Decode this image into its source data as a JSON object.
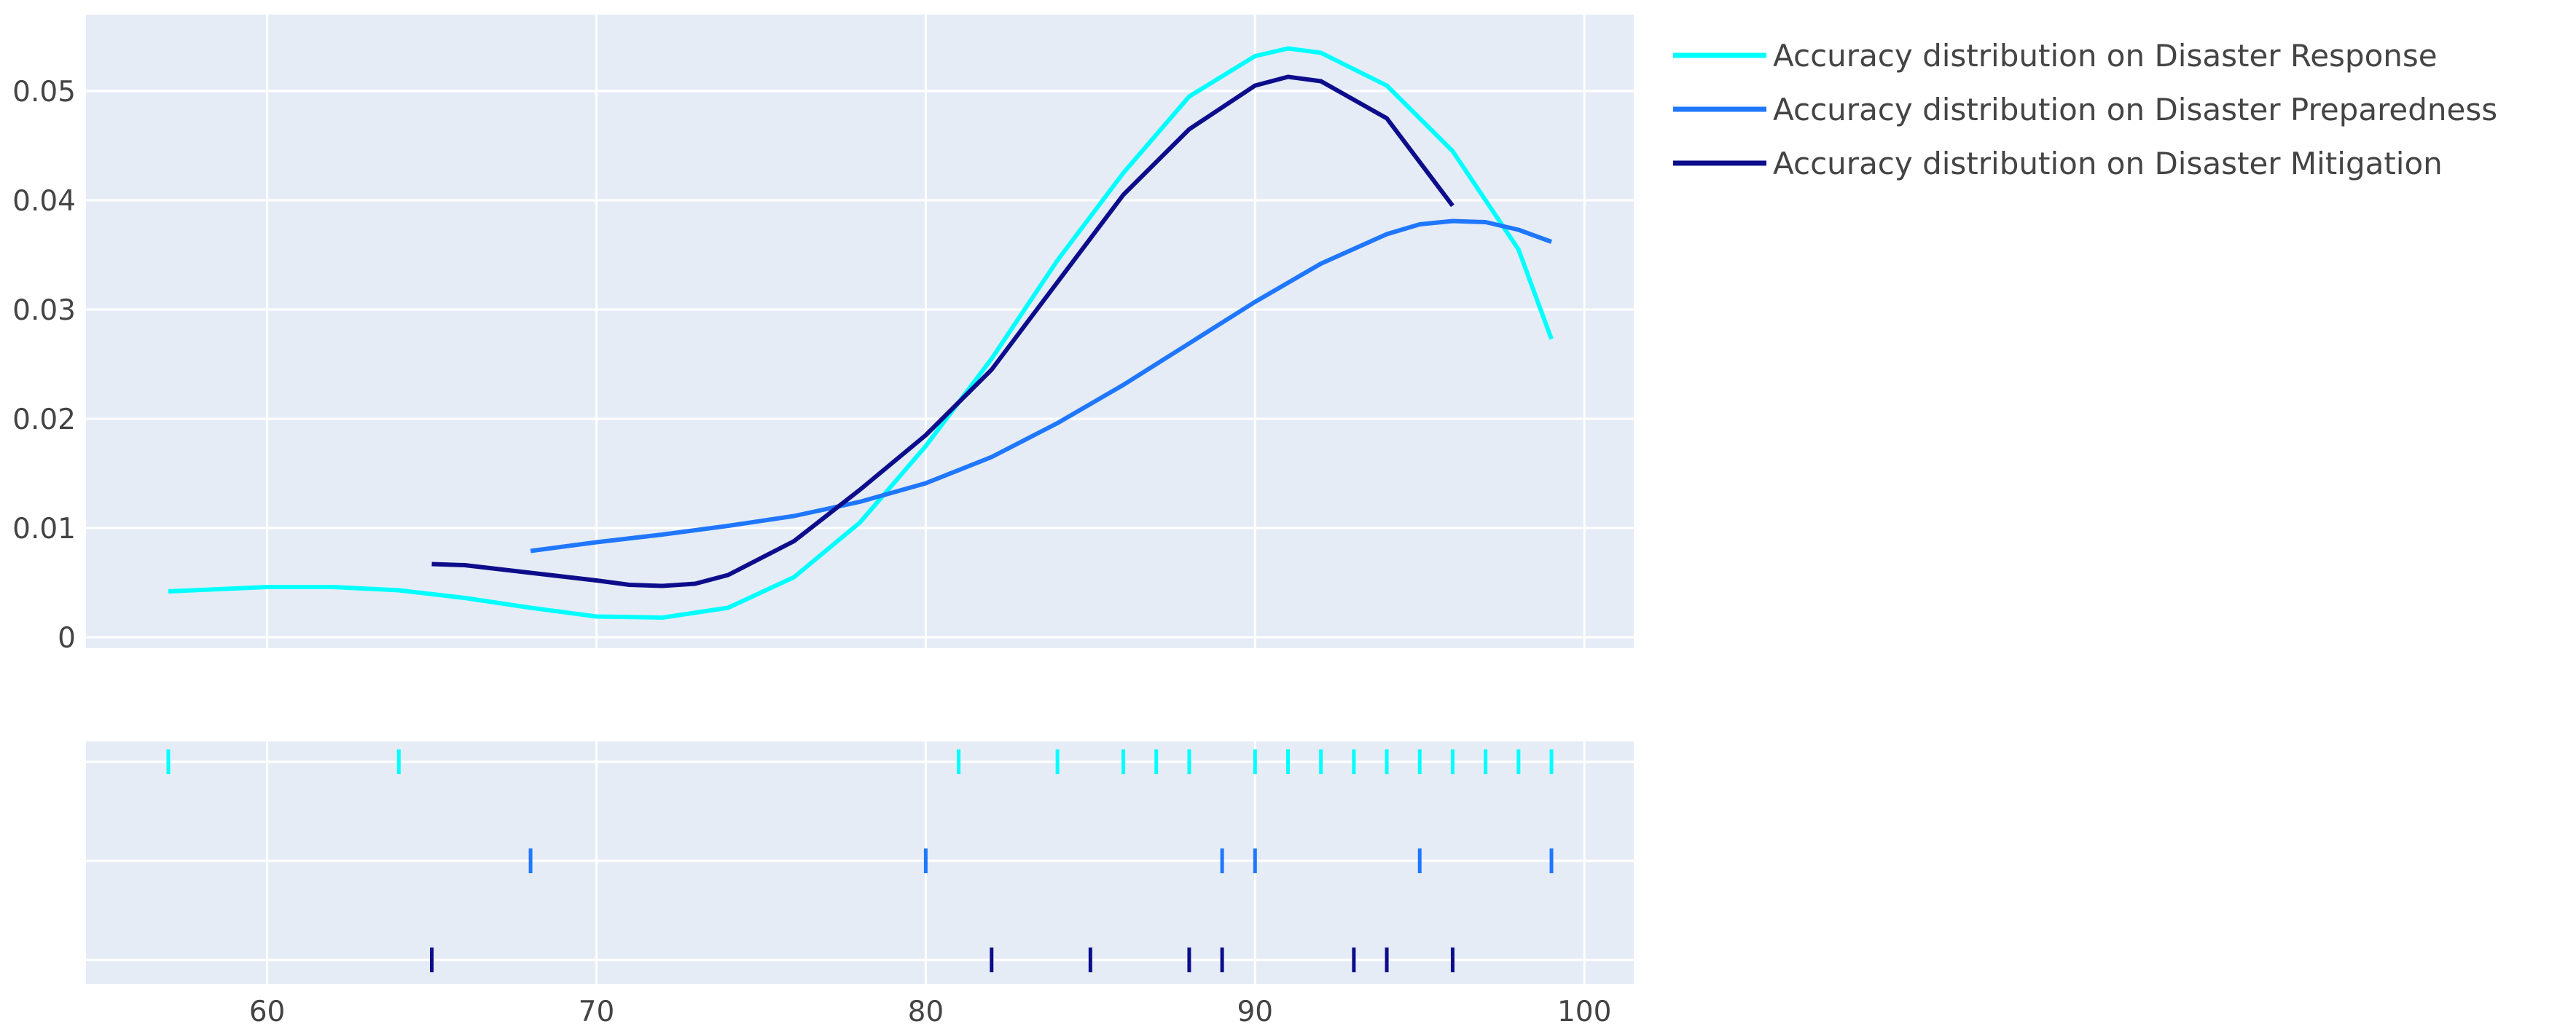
{
  "chart_data": {
    "type": "line",
    "title": "",
    "xlabel": "",
    "ylabel": "",
    "xlim": [
      54.5,
      101.5
    ],
    "ylim": [
      -0.001,
      0.057
    ],
    "x_ticks": [
      60,
      70,
      80,
      90,
      100
    ],
    "y_ticks": [
      0,
      0.01,
      0.02,
      0.03,
      0.04,
      0.05
    ],
    "y_tick_labels": [
      "0",
      "0.01",
      "0.02",
      "0.03",
      "0.04",
      "0.05"
    ],
    "grid": true,
    "legend_position": "top-right",
    "plot_background": "#E5ECF6",
    "series": [
      {
        "name": "Accuracy distribution on Disaster Response",
        "color": "#00FFFF",
        "density": {
          "x": [
            57,
            60,
            62,
            64,
            66,
            68,
            70,
            72,
            74,
            76,
            78,
            80,
            82,
            84,
            86,
            88,
            90,
            91,
            92,
            94,
            96,
            98,
            99
          ],
          "y": [
            0.0042,
            0.0046,
            0.0046,
            0.0043,
            0.0036,
            0.0027,
            0.0019,
            0.0018,
            0.0027,
            0.0055,
            0.0105,
            0.0175,
            0.0255,
            0.0345,
            0.0425,
            0.0495,
            0.0532,
            0.0539,
            0.0535,
            0.0505,
            0.0445,
            0.0355,
            0.0273
          ]
        },
        "rug": [
          57,
          64,
          81,
          84,
          86,
          87,
          88,
          90,
          91,
          92,
          93,
          94,
          95,
          96,
          97,
          98,
          99
        ]
      },
      {
        "name": "Accuracy distribution on Disaster Preparedness",
        "color": "#1F77FF",
        "density": {
          "x": [
            68,
            70,
            72,
            74,
            76,
            78,
            80,
            82,
            84,
            86,
            88,
            90,
            92,
            94,
            95,
            96,
            97,
            98,
            99
          ],
          "y": [
            0.0079,
            0.0087,
            0.0094,
            0.0102,
            0.0111,
            0.0124,
            0.0141,
            0.0165,
            0.0196,
            0.0231,
            0.0269,
            0.0307,
            0.0342,
            0.0369,
            0.0378,
            0.0381,
            0.038,
            0.0373,
            0.0362
          ]
        },
        "rug": [
          68,
          80,
          89,
          90,
          95,
          99
        ]
      },
      {
        "name": "Accuracy distribution on Disaster Mitigation",
        "color": "#0D0D8C",
        "density": {
          "x": [
            65,
            66,
            68,
            70,
            71,
            72,
            73,
            74,
            76,
            78,
            80,
            82,
            84,
            86,
            88,
            90,
            91,
            92,
            94,
            96
          ],
          "y": [
            0.0067,
            0.0066,
            0.0059,
            0.0052,
            0.0048,
            0.0047,
            0.0049,
            0.0057,
            0.0088,
            0.0135,
            0.0185,
            0.0245,
            0.0325,
            0.0405,
            0.0465,
            0.0505,
            0.0513,
            0.0509,
            0.0475,
            0.0395
          ]
        },
        "rug": [
          65,
          82,
          85,
          88,
          89,
          93,
          94,
          96
        ]
      }
    ]
  }
}
